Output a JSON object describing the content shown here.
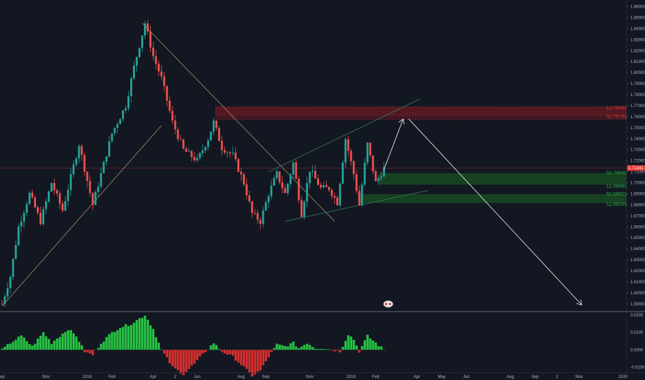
{
  "chart_data": {
    "type": "candlestick",
    "price_ylim": [
      1.583,
      1.866
    ],
    "price_ticks": [
      "1.86000",
      "1.85000",
      "1.84000",
      "1.83000",
      "1.82000",
      "1.81000",
      "1.80000",
      "1.79000",
      "1.78000",
      "1.77000",
      "1.76000",
      "1.75000",
      "1.74000",
      "1.73000",
      "1.72000",
      "1.71000",
      "1.70000",
      "1.69000",
      "1.68000",
      "1.67000",
      "1.66000",
      "1.65000",
      "1.64000",
      "1.63000",
      "1.62000",
      "1.61000",
      "1.60000",
      "1.59000"
    ],
    "current_price": "1.71341",
    "current_price_value": 1.7134,
    "time_labels": [
      "ep",
      "Nov",
      "2018",
      "Feb",
      "Apr",
      "2",
      "Jun",
      "Aug",
      "Sep",
      "Nov",
      "2019",
      "Feb",
      "Apr",
      "May",
      "Jun",
      "Aug",
      "Sep",
      "2",
      "Nov",
      "2020"
    ],
    "time_label_index": [
      0,
      16,
      31,
      40,
      55,
      63,
      71,
      87,
      96,
      112,
      127,
      136,
      151,
      160,
      169,
      185,
      194,
      202,
      210,
      226
    ],
    "close_path": [
      [
        0,
        1.59
      ],
      [
        3,
        1.615
      ],
      [
        6,
        1.66
      ],
      [
        10,
        1.69
      ],
      [
        14,
        1.665
      ],
      [
        18,
        1.7
      ],
      [
        22,
        1.675
      ],
      [
        28,
        1.735
      ],
      [
        33,
        1.68
      ],
      [
        40,
        1.745
      ],
      [
        45,
        1.77
      ],
      [
        48,
        1.805
      ],
      [
        52,
        1.845
      ],
      [
        55,
        1.815
      ],
      [
        58,
        1.795
      ],
      [
        62,
        1.755
      ],
      [
        66,
        1.73
      ],
      [
        71,
        1.72
      ],
      [
        75,
        1.74
      ],
      [
        77,
        1.755
      ],
      [
        80,
        1.732
      ],
      [
        84,
        1.725
      ],
      [
        88,
        1.7
      ],
      [
        91,
        1.672
      ],
      [
        94,
        1.665
      ],
      [
        97,
        1.69
      ],
      [
        100,
        1.708
      ],
      [
        103,
        1.69
      ],
      [
        106,
        1.718
      ],
      [
        109,
        1.672
      ],
      [
        112,
        1.712
      ],
      [
        116,
        1.695
      ],
      [
        119,
        1.695
      ],
      [
        122,
        1.682
      ],
      [
        125,
        1.74
      ],
      [
        128,
        1.708
      ],
      [
        130,
        1.68
      ],
      [
        133,
        1.735
      ],
      [
        136,
        1.7
      ],
      [
        139,
        1.713
      ]
    ],
    "zones": [
      {
        "label": "1(1.76905)",
        "top": 1.769,
        "bottom": 1.7613,
        "color": "#e53935"
      },
      {
        "label": "0(1.75736)",
        "top": 1.7613,
        "bottom": 1.7574,
        "color": "#e53935"
      },
      {
        "label": "0(1.70848)",
        "top": 1.7085,
        "bottom": 1.6986,
        "color": "#26c043"
      },
      {
        "label": "1(1.69856)",
        "top": 1.6986,
        "bottom": 1.6986,
        "color": "#26c043"
      },
      {
        "label": "0(1.68927)",
        "top": 1.6893,
        "bottom": 1.682,
        "color": "#26c043"
      },
      {
        "label": "1(1.68200)",
        "top": 1.682,
        "bottom": 1.682,
        "color": "#26c043"
      }
    ],
    "trendlines": [
      {
        "from": [
          0,
          1.588
        ],
        "to": [
          58,
          1.752
        ],
        "color": "#8d8a5a"
      },
      {
        "from": [
          51,
          1.845
        ],
        "to": [
          121,
          1.665
        ],
        "color": "#8d8a5a"
      },
      {
        "from": [
          97,
          1.71
        ],
        "to": [
          152,
          1.776
        ],
        "color": "#2f7a5f"
      },
      {
        "from": [
          103,
          1.665
        ],
        "to": [
          155,
          1.693
        ],
        "color": "#2f7a5f"
      }
    ],
    "projection_arrows": [
      {
        "from": [
          139,
          1.712
        ],
        "to": [
          146,
          1.758
        ]
      },
      {
        "from": [
          148,
          1.758
        ],
        "to": [
          211,
          1.589
        ]
      }
    ],
    "oscillator": {
      "ylim": [
        -0.013,
        0.022
      ],
      "ticks": [
        "0.0200",
        "0.0100",
        "0.0000",
        "-0.0100"
      ],
      "tick_values": [
        0.02,
        0.01,
        0.0,
        -0.01
      ],
      "histogram_path": [
        [
          0,
          0.0
        ],
        [
          3,
          0.004
        ],
        [
          7,
          0.008
        ],
        [
          11,
          0.002
        ],
        [
          13,
          0.006
        ],
        [
          15,
          0.01
        ],
        [
          18,
          0.004
        ],
        [
          21,
          0.008
        ],
        [
          24,
          0.012
        ],
        [
          27,
          0.008
        ],
        [
          30,
          -0.001
        ],
        [
          33,
          -0.003
        ],
        [
          36,
          0.004
        ],
        [
          40,
          0.01
        ],
        [
          43,
          0.013
        ],
        [
          47,
          0.015
        ],
        [
          50,
          0.018
        ],
        [
          52,
          0.02
        ],
        [
          55,
          0.012
        ],
        [
          58,
          0.0
        ],
        [
          62,
          -0.01
        ],
        [
          66,
          -0.014
        ],
        [
          70,
          -0.008
        ],
        [
          74,
          -0.001
        ],
        [
          77,
          0.004
        ],
        [
          80,
          -0.001
        ],
        [
          84,
          -0.004
        ],
        [
          88,
          -0.01
        ],
        [
          91,
          -0.015
        ],
        [
          94,
          -0.012
        ],
        [
          97,
          -0.004
        ],
        [
          100,
          0.003
        ],
        [
          103,
          0.002
        ],
        [
          106,
          0.004
        ],
        [
          108,
          0.001
        ],
        [
          111,
          0.004
        ],
        [
          114,
          0.001
        ],
        [
          117,
          0.001
        ],
        [
          120,
          0.0
        ],
        [
          123,
          -0.001
        ],
        [
          126,
          0.009
        ],
        [
          128,
          0.006
        ],
        [
          130,
          -0.001
        ],
        [
          133,
          0.008
        ],
        [
          136,
          0.004
        ],
        [
          139,
          0.0
        ]
      ]
    }
  }
}
